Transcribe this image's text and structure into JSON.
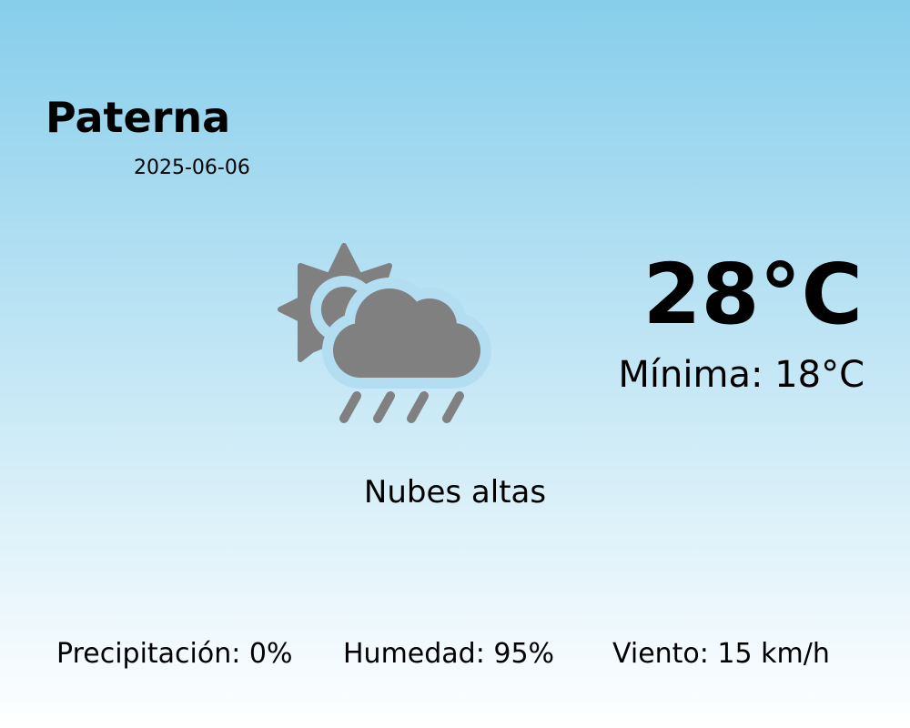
{
  "city": "Paterna",
  "date": "2025-06-06",
  "temperature": "28°C",
  "minimum": "Mínima: 18°C",
  "description": "Nubes altas",
  "icon": "sun-cloud-rain-icon",
  "colors": {
    "background_top": "#87ceeb",
    "background_bottom": "#ffffff",
    "icon": "#808080"
  },
  "stats": {
    "precipitation": "Precipitación: 0%",
    "humidity": "Humedad: 95%",
    "wind": "Viento: 15 km/h"
  }
}
